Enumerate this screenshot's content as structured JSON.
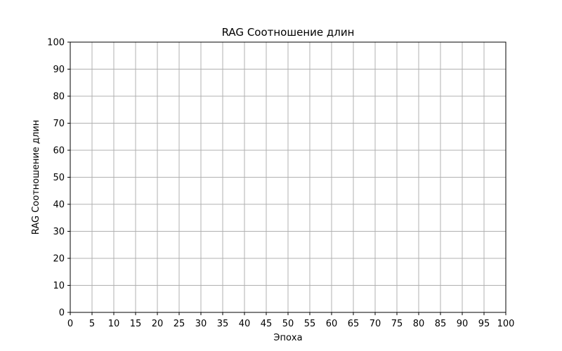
{
  "chart_data": {
    "type": "line",
    "title": "RAG Соотношение длин",
    "xlabel": "Эпоха",
    "ylabel": "RAG Соотношение длин",
    "xlim": [
      0,
      100
    ],
    "ylim": [
      0,
      100
    ],
    "x_ticks": [
      "0",
      "5",
      "10",
      "15",
      "20",
      "25",
      "30",
      "35",
      "40",
      "45",
      "50",
      "55",
      "60",
      "65",
      "70",
      "75",
      "80",
      "85",
      "90",
      "95",
      "100"
    ],
    "y_ticks": [
      "0",
      "10",
      "20",
      "30",
      "40",
      "50",
      "60",
      "70",
      "80",
      "90",
      "100"
    ],
    "grid": true,
    "series": [],
    "colors": {
      "grid": "#b0b0b0",
      "axis": "#000000",
      "background": "#ffffff"
    }
  }
}
